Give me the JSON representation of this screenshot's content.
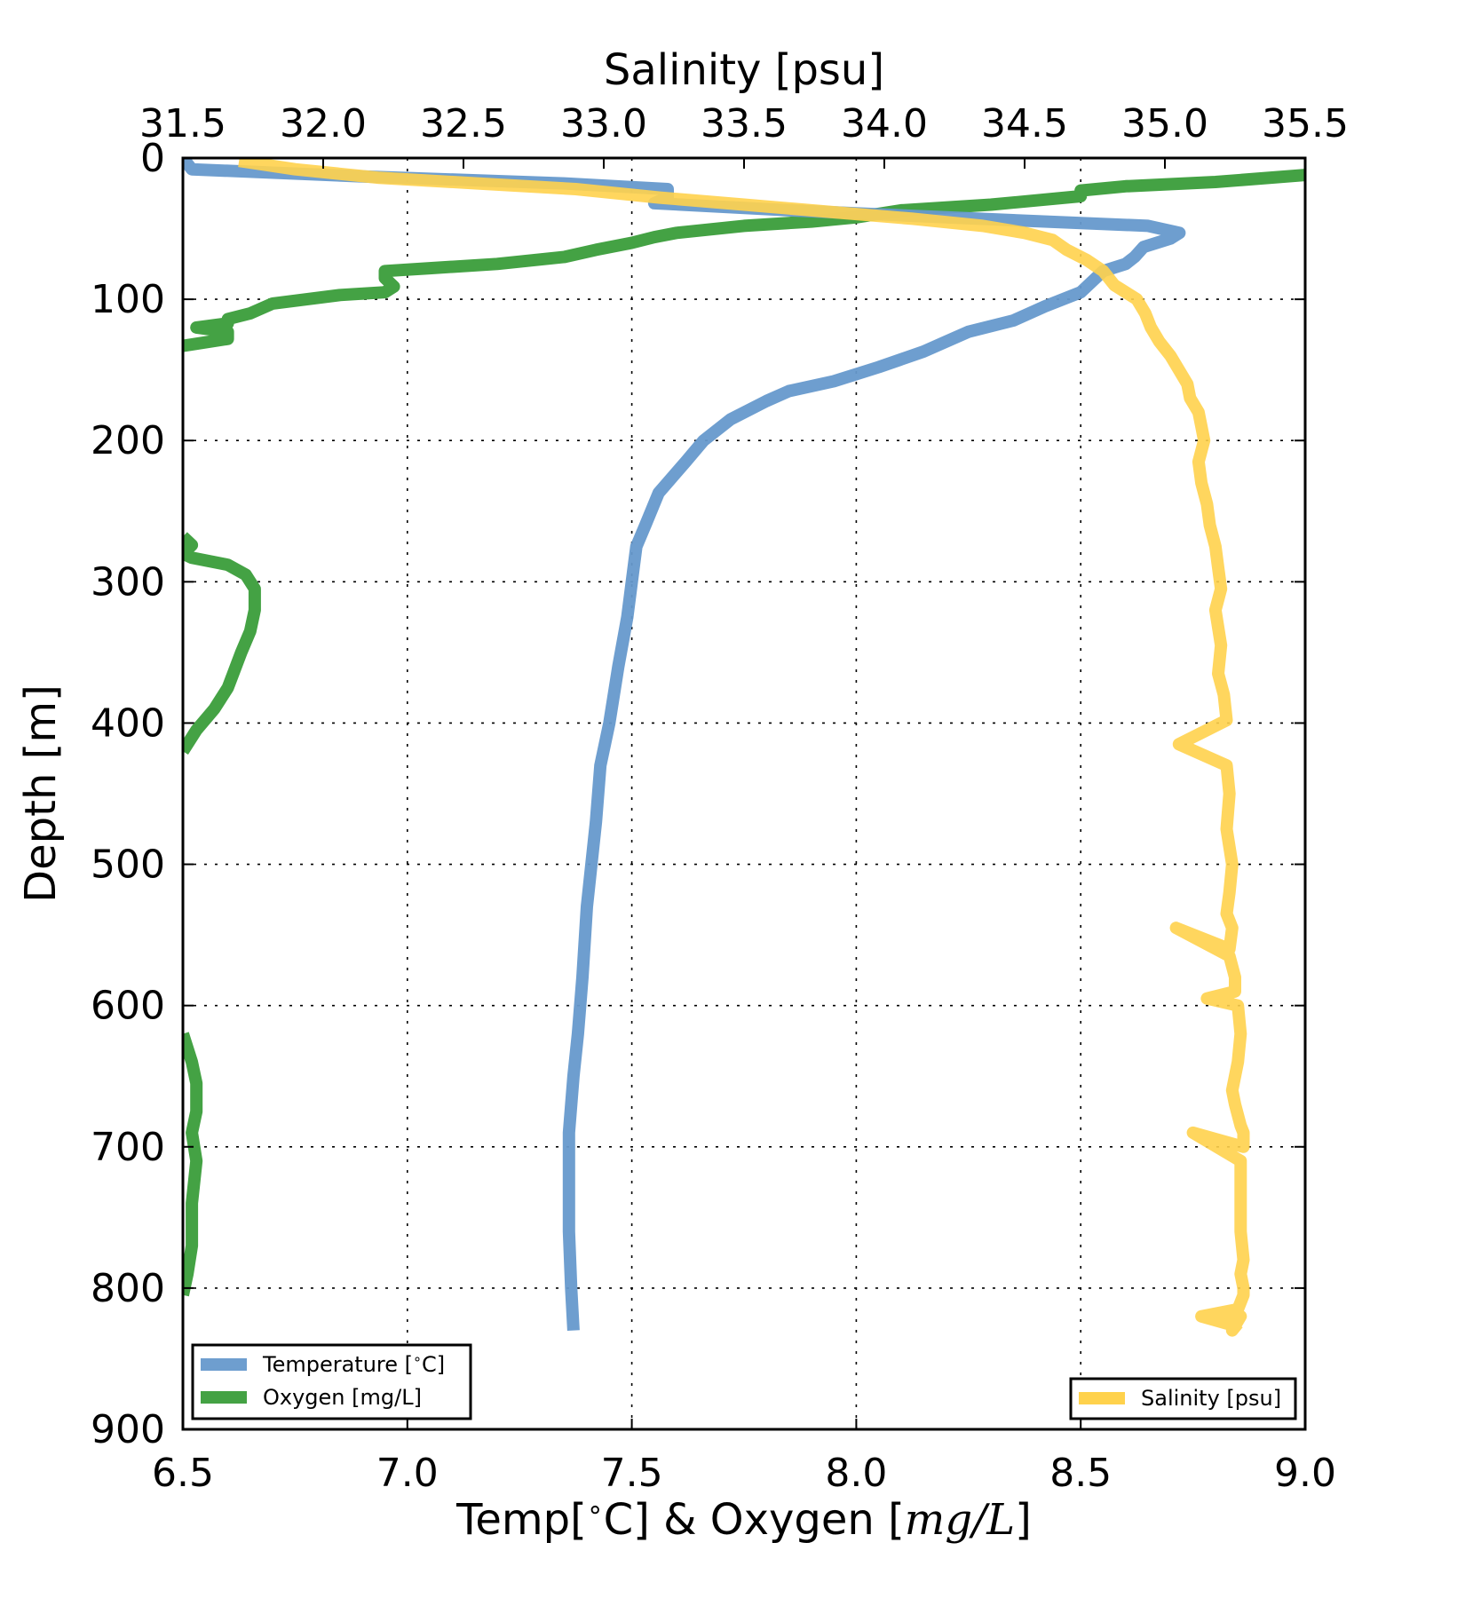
{
  "chart_data": {
    "type": "line",
    "bottom_axis": {
      "label": "Temp[$^\\circ$C] & Oxygen [$mg/L$]",
      "label_parts": {
        "prefix": "Temp[",
        "degree": "∘",
        "middle": "C] & Oxygen [",
        "math": "mg/L",
        "suffix": "]"
      },
      "range": [
        6.5,
        9.0
      ],
      "ticks": [
        "6.5",
        "7.0",
        "7.5",
        "8.0",
        "8.5",
        "9.0"
      ]
    },
    "top_axis": {
      "label": "Salinity [psu]",
      "range": [
        31.5,
        35.5
      ],
      "ticks": [
        "31.5",
        "32.0",
        "32.5",
        "33.0",
        "33.5",
        "34.0",
        "34.5",
        "35.0",
        "35.5"
      ]
    },
    "y_axis": {
      "label": "Depth [m]",
      "range": [
        0,
        900
      ],
      "inverted": true,
      "ticks": [
        "0",
        "100",
        "200",
        "300",
        "400",
        "500",
        "600",
        "700",
        "800",
        "900"
      ]
    },
    "grid": true,
    "series": [
      {
        "name": "Temperature [$^\\circ$C]",
        "legend_parts": {
          "prefix": "Temperature [",
          "degree": "∘",
          "suffix": "C]"
        },
        "axis": "bottom",
        "color": "#6699cc",
        "x": [
          6.5,
          6.52,
          6.9,
          7.35,
          7.58,
          7.58,
          7.55,
          7.85,
          8.2,
          8.65,
          8.72,
          8.7,
          8.64,
          8.62,
          8.6,
          8.55,
          8.5,
          8.42,
          8.35,
          8.25,
          8.2,
          8.15,
          8.05,
          7.95,
          7.85,
          7.8,
          7.72,
          7.66,
          7.62,
          7.56,
          7.53,
          7.51,
          7.5,
          7.49,
          7.47,
          7.45,
          7.43,
          7.42,
          7.4,
          7.39,
          7.38,
          7.37,
          7.36,
          7.36,
          7.36,
          7.365,
          7.37
        ],
        "y": [
          0,
          8,
          13,
          18,
          22,
          28,
          32,
          37,
          42,
          48,
          53,
          57,
          63,
          70,
          75,
          80,
          95,
          105,
          115,
          123,
          130,
          137,
          148,
          158,
          165,
          172,
          185,
          200,
          215,
          237,
          260,
          275,
          300,
          325,
          360,
          400,
          430,
          470,
          530,
          580,
          620,
          650,
          690,
          720,
          760,
          800,
          830
        ]
      },
      {
        "name": "Oxygen [mg/L]",
        "axis": "bottom",
        "color": "#44a244",
        "segments": [
          {
            "x": [
              9.0,
              8.8,
              8.6,
              8.5,
              8.5,
              8.3,
              8.1,
              8.0,
              7.9,
              7.75,
              7.6,
              7.55,
              7.5,
              7.42,
              7.35,
              7.2,
              7.05,
              6.95,
              6.95,
              6.97,
              6.95,
              6.85,
              6.7,
              6.65,
              6.6,
              6.6,
              6.53,
              6.6,
              6.6,
              6.5
            ],
            "y": [
              12,
              17,
              20,
              23,
              27,
              33,
              37,
              42,
              45,
              48,
              53,
              56,
              60,
              65,
              70,
              75,
              78,
              80,
              85,
              91,
              95,
              97,
              103,
              110,
              114,
              117,
              120,
              123,
              128,
              133
            ]
          },
          {
            "x": [
              6.5,
              6.52,
              6.5,
              6.52,
              6.6,
              6.64,
              6.66,
              6.66,
              6.65,
              6.63,
              6.6,
              6.57,
              6.53,
              6.5
            ],
            "y": [
              268,
              274,
              280,
              283,
              288,
              295,
              305,
              320,
              335,
              350,
              375,
              390,
              405,
              420
            ]
          },
          {
            "x": [
              6.5,
              6.52,
              6.53,
              6.53,
              6.52,
              6.53,
              6.52,
              6.52,
              6.51,
              6.5
            ],
            "y": [
              620,
              640,
              655,
              675,
              690,
              710,
              740,
              770,
              790,
              805
            ]
          }
        ]
      },
      {
        "name": "Salinity [psu]",
        "axis": "top",
        "color": "#ffd24c",
        "x": [
          31.7,
          31.9,
          32.2,
          32.55,
          32.9,
          33.2,
          33.5,
          33.8,
          34.1,
          34.35,
          34.5,
          34.6,
          34.65,
          34.72,
          34.78,
          34.82,
          34.9,
          34.93,
          34.95,
          34.98,
          35.02,
          35.05,
          35.08,
          35.09,
          35.12,
          35.13,
          35.14,
          35.12,
          35.13,
          35.15,
          35.16,
          35.18,
          35.19,
          35.2,
          35.18,
          35.2,
          35.19,
          35.21,
          35.22,
          35.05,
          35.22,
          35.23,
          35.22,
          35.24,
          35.23,
          35.22,
          35.24,
          35.23,
          35.04,
          35.23,
          35.25,
          35.25,
          35.15,
          35.26,
          35.27,
          35.26,
          35.24,
          35.25,
          35.27,
          35.28,
          35.28,
          35.1,
          35.27,
          35.27,
          35.27,
          35.28,
          35.27,
          35.28,
          35.28,
          35.26,
          35.13,
          35.22,
          35.27,
          35.24,
          35.26
        ],
        "y": [
          2,
          8,
          14,
          18,
          22,
          28,
          33,
          38,
          43,
          48,
          53,
          58,
          65,
          72,
          80,
          90,
          100,
          110,
          120,
          130,
          140,
          150,
          160,
          170,
          180,
          190,
          200,
          215,
          230,
          245,
          260,
          275,
          290,
          305,
          320,
          345,
          365,
          380,
          398,
          415,
          430,
          450,
          475,
          500,
          520,
          535,
          545,
          560,
          545,
          565,
          580,
          590,
          595,
          600,
          620,
          640,
          660,
          670,
          685,
          690,
          700,
          690,
          710,
          740,
          760,
          780,
          790,
          800,
          805,
          815,
          820,
          825,
          820,
          830,
          825
        ]
      }
    ],
    "legends": [
      {
        "placement": "lower-left",
        "entries": [
          "Temperature [$^\\circ$C]",
          "Oxygen [mg/L]"
        ]
      },
      {
        "placement": "lower-right",
        "entries": [
          "Salinity [psu]"
        ]
      }
    ]
  }
}
